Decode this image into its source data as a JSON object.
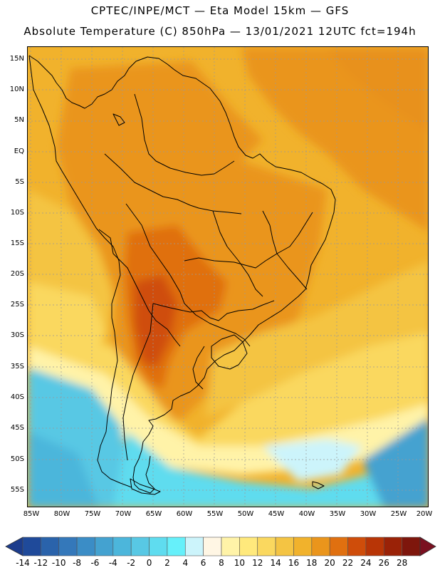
{
  "header": {
    "line1": "CPTEC/INPE/MCT —  Eta Model 15km — GFS",
    "line2": "Absolute Temperature (C) 850hPa — 13/01/2021 12UTC fct=194h"
  },
  "map": {
    "lat_labels": [
      "15N",
      "10N",
      "5N",
      "EQ",
      "5S",
      "10S",
      "15S",
      "20S",
      "25S",
      "30S",
      "35S",
      "40S",
      "45S",
      "50S",
      "55S"
    ],
    "lon_labels": [
      "85W",
      "80W",
      "75W",
      "70W",
      "65W",
      "60W",
      "55W",
      "50W",
      "45W",
      "40W",
      "35W",
      "30W",
      "25W",
      "20W"
    ]
  },
  "colorbar": {
    "labels": [
      "-14",
      "-12",
      "-10",
      "-8",
      "-6",
      "-4",
      "-2",
      "0",
      "2",
      "4",
      "6",
      "8",
      "10",
      "12",
      "14",
      "16",
      "18",
      "20",
      "22",
      "24",
      "26",
      "28"
    ],
    "under_color": "#1c3c8c",
    "over_color": "#7a1020",
    "colors": [
      "#1f4a9a",
      "#2a63ab",
      "#3478ba",
      "#3b8dc6",
      "#44a2d0",
      "#4cb6db",
      "#58c8e4",
      "#5fdcef",
      "#66f0fa",
      "#ccf4fb",
      "#fff6e4",
      "#fff3a8",
      "#ffe97c",
      "#fad85f",
      "#f4c443",
      "#f1b22c",
      "#ea951c",
      "#e07010",
      "#cf4d0a",
      "#b83506",
      "#9a2207",
      "#7e160c"
    ]
  }
}
